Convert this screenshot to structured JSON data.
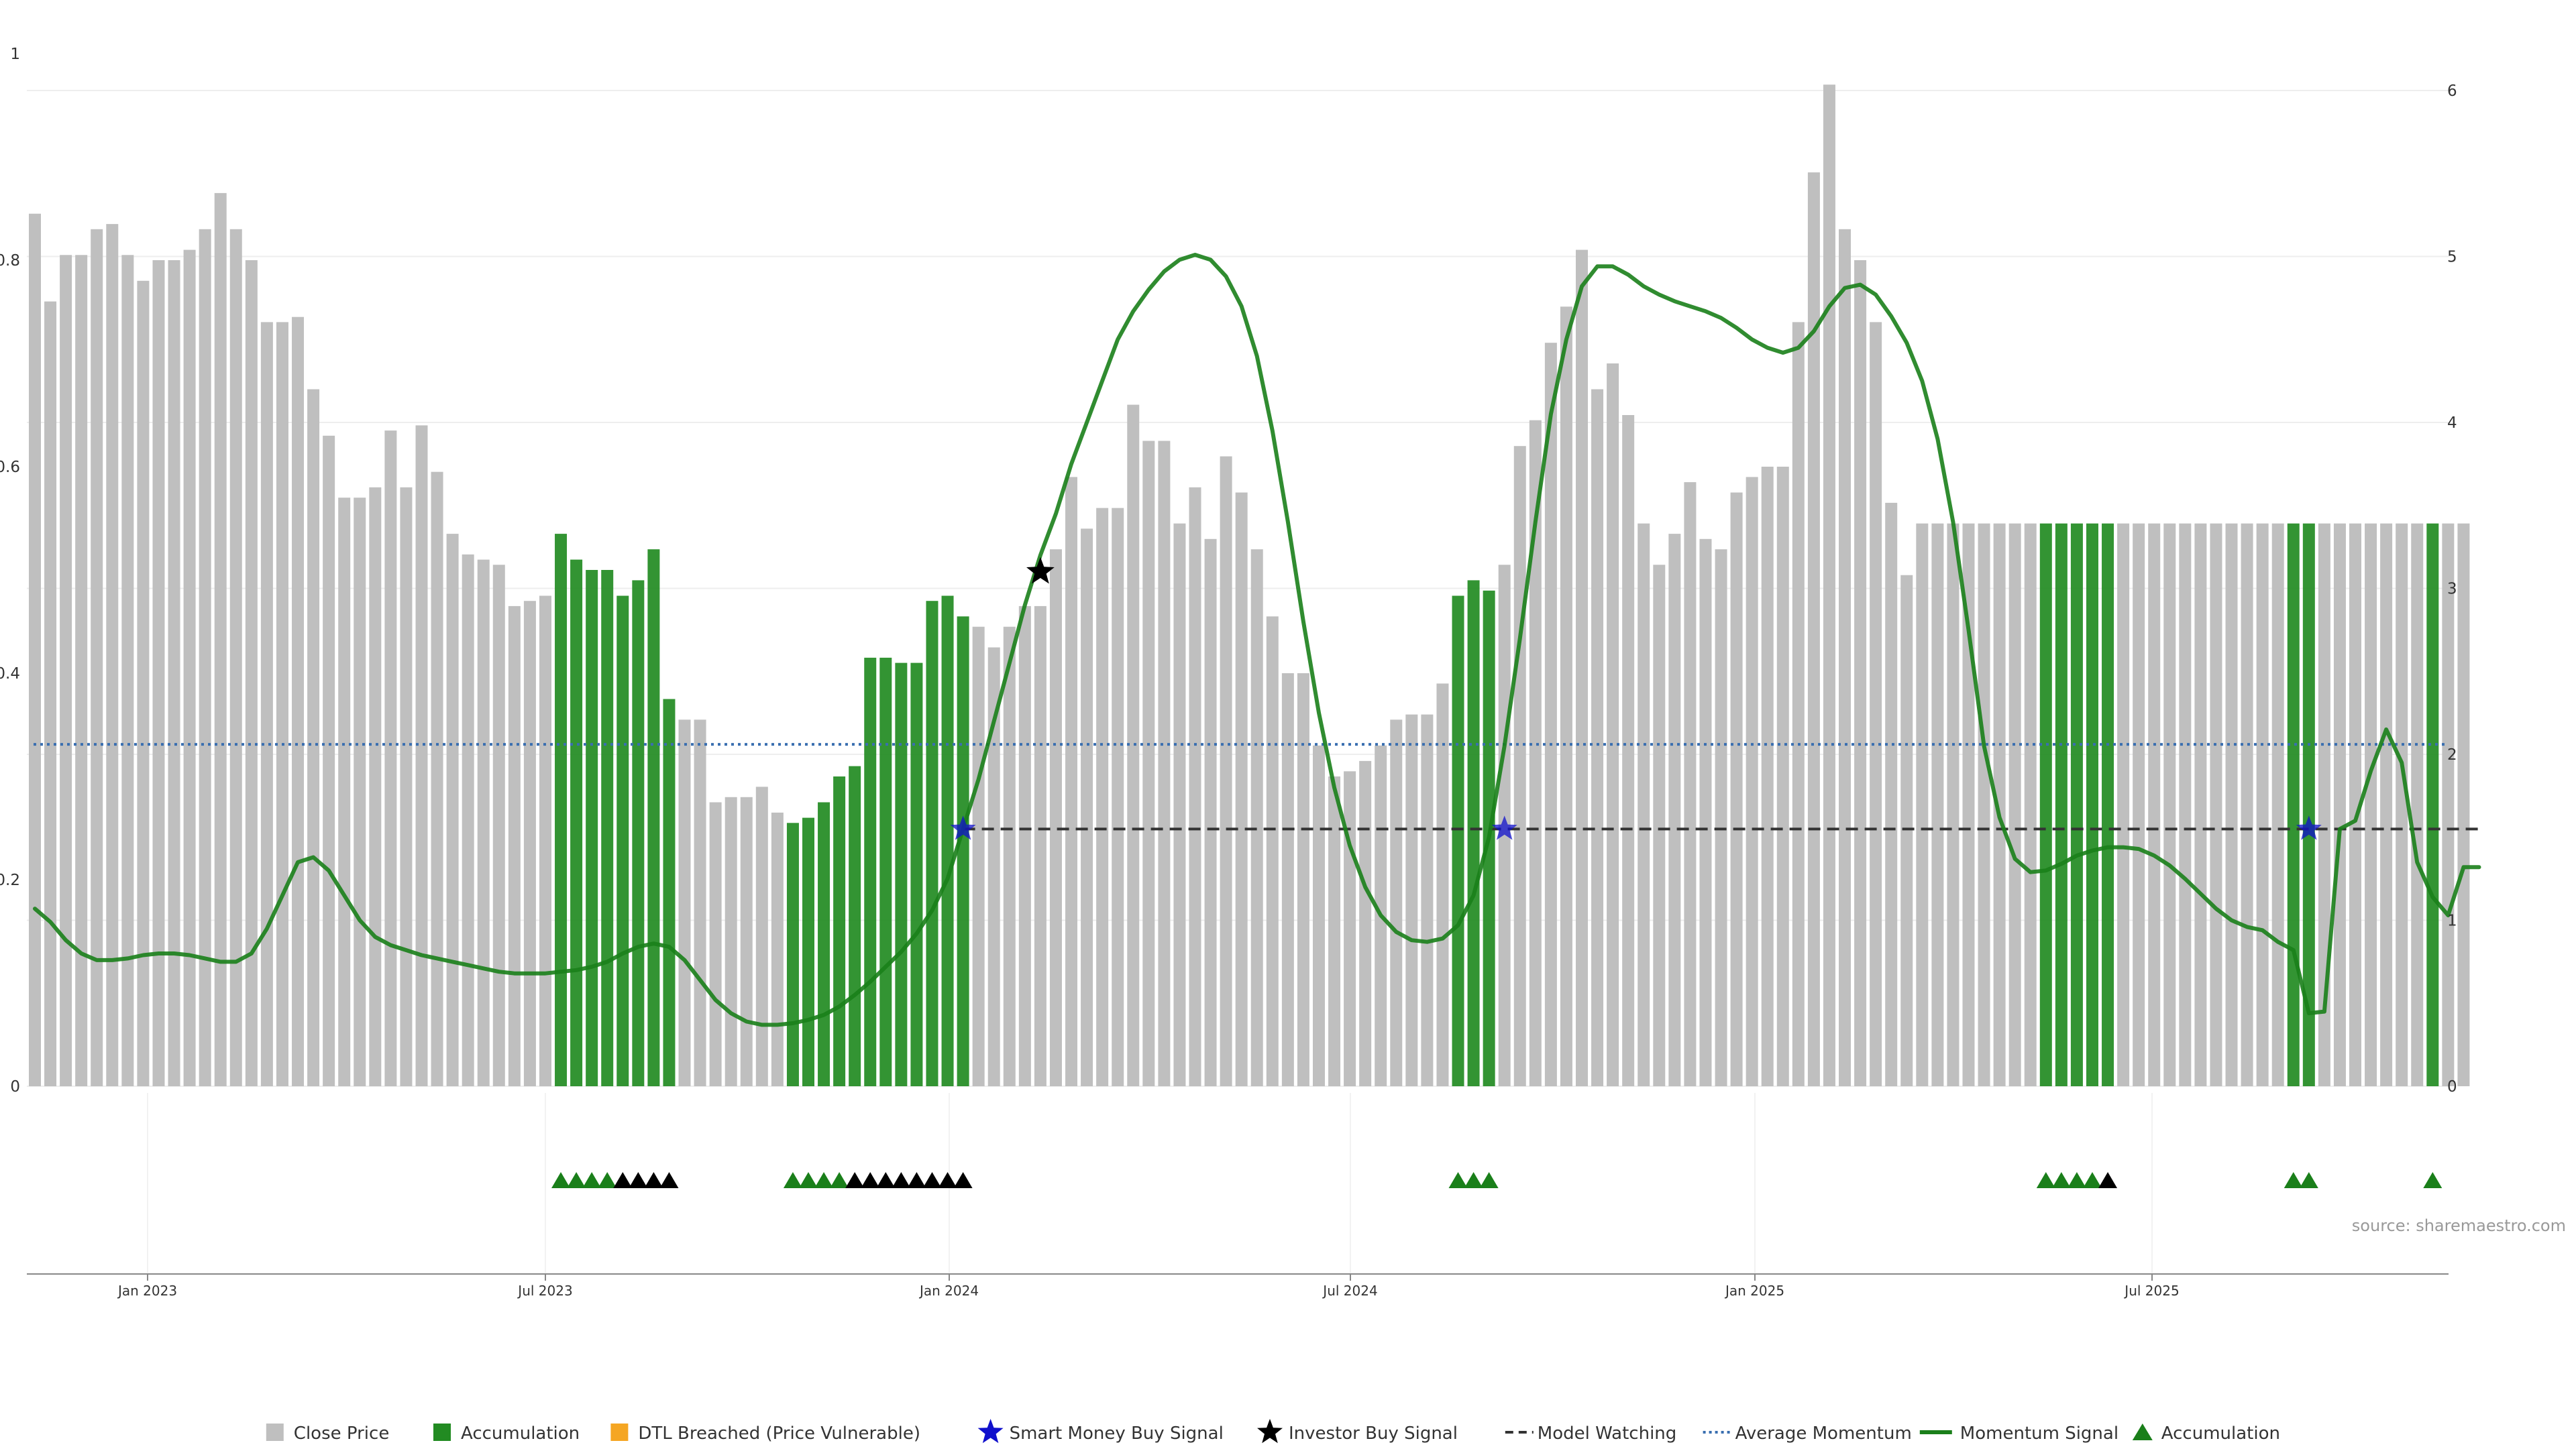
{
  "chart_data": {
    "type": "bar",
    "source_note": "source: sharemaestro.com",
    "x_ticks": [
      "Jan 2023",
      "Jul 2023",
      "Jan 2024",
      "Jul 2024",
      "Jan 2025",
      "Jul 2025"
    ],
    "left_axis": {
      "ylim": [
        0,
        1
      ],
      "ticks": [
        "0",
        "0.2",
        "0.4",
        "0.6",
        "0.8",
        "1"
      ]
    },
    "right_axis": {
      "ylim": [
        0,
        6
      ],
      "ticks": [
        "0",
        "1",
        "2",
        "3",
        "4",
        "5",
        "6"
      ]
    },
    "grid": true,
    "legend_position": "bottom",
    "colors": {
      "close_price": "#bfbfbf",
      "accumulation": "#228b22",
      "dtl_breached": "#f5a623",
      "smart_money": "#1010cc",
      "investor": "#000000",
      "model_watching": "#333333",
      "average_momentum": "#3a6fb0",
      "momentum": "#1a7f1a",
      "grid": "#eeeeee"
    },
    "legend": [
      {
        "label": "Close Price",
        "marker": "square",
        "color": "#bfbfbf"
      },
      {
        "label": "Accumulation",
        "marker": "square",
        "color": "#228b22"
      },
      {
        "label": "DTL Breached (Price Vulnerable)",
        "marker": "square",
        "color": "#f5a623"
      },
      {
        "label": "Smart Money Buy Signal",
        "marker": "star",
        "color": "#1010cc"
      },
      {
        "label": "Investor Buy Signal",
        "marker": "star",
        "color": "#000000"
      },
      {
        "label": "Model Watching",
        "marker": "dash",
        "color": "#333333"
      },
      {
        "label": "Average Momentum",
        "marker": "dot",
        "color": "#3a6fb0"
      },
      {
        "label": "Momentum Signal",
        "marker": "line",
        "color": "#1a7f1a"
      },
      {
        "label": "Accumulation",
        "marker": "triangle",
        "color": "#1a7f1a"
      }
    ],
    "series": [
      {
        "name": "Close Price",
        "type": "bar",
        "axis": "left",
        "x_index_range": [
          0,
          156
        ],
        "values": [
          0.845,
          0.76,
          0.805,
          0.805,
          0.83,
          0.835,
          0.805,
          0.78,
          0.8,
          0.8,
          0.81,
          0.83,
          0.865,
          0.83,
          0.8,
          0.74,
          0.74,
          0.745,
          0.675,
          0.63,
          0.57,
          0.57,
          0.58,
          0.635,
          0.58,
          0.64,
          0.595,
          0.535,
          0.515,
          0.51,
          0.505,
          0.465,
          0.47,
          0.475,
          0.535,
          0.51,
          0.5,
          0.5,
          0.475,
          0.49,
          0.52,
          0.375,
          0.355,
          0.355,
          0.275,
          0.28,
          0.28,
          0.29,
          0.265,
          0.255,
          0.26,
          0.275,
          0.3,
          0.31,
          0.415,
          0.415,
          0.41,
          0.41,
          0.47,
          0.475,
          0.455,
          0.445,
          0.425,
          0.445,
          0.465,
          0.465,
          0.52,
          0.59,
          0.54,
          0.56,
          0.56,
          0.66,
          0.625,
          0.625,
          0.545,
          0.58,
          0.53,
          0.61,
          0.575,
          0.52,
          0.455,
          0.4,
          0.4,
          0.33,
          0.3,
          0.305,
          0.315,
          0.33,
          0.355,
          0.36,
          0.36,
          0.39,
          0.475,
          0.49,
          0.48,
          0.505,
          0.62,
          0.645,
          0.72,
          0.755,
          0.81,
          0.675,
          0.7,
          0.65,
          0.545,
          0.505,
          0.535,
          0.585,
          0.53,
          0.52,
          0.575,
          0.59,
          0.6,
          0.6,
          0.74,
          0.885,
          0.97,
          0.83,
          0.8,
          0.74,
          0.565,
          0.495,
          0.545,
          0.545,
          0.545,
          0.545,
          0.545,
          0.545,
          0.545,
          0.545,
          0.545,
          0.545,
          0.545,
          0.545,
          0.545,
          0.545,
          0.545,
          0.545,
          0.545,
          0.545,
          0.545,
          0.545,
          0.545,
          0.545,
          0.545,
          0.545,
          0.545,
          0.545,
          0.545,
          0.545,
          0.545,
          0.545,
          0.545,
          0.545,
          0.545,
          0.545,
          0.545,
          0.545
        ],
        "accumulation_index_ranges": [
          [
            34,
            41
          ],
          [
            49,
            60
          ],
          [
            92,
            94
          ],
          [
            130,
            134
          ],
          [
            146,
            146
          ],
          [
            147,
            147
          ],
          [
            155,
            155
          ]
        ]
      },
      {
        "name": "Momentum Signal",
        "type": "line",
        "axis": "right",
        "points": [
          [
            0,
            1.07
          ],
          [
            1,
            0.99
          ],
          [
            2,
            0.88
          ],
          [
            3,
            0.8
          ],
          [
            4,
            0.76
          ],
          [
            5,
            0.76
          ],
          [
            6,
            0.77
          ],
          [
            7,
            0.79
          ],
          [
            8,
            0.8
          ],
          [
            9,
            0.8
          ],
          [
            10,
            0.79
          ],
          [
            11,
            0.77
          ],
          [
            12,
            0.75
          ],
          [
            13,
            0.75
          ],
          [
            14,
            0.8
          ],
          [
            15,
            0.95
          ],
          [
            16,
            1.15
          ],
          [
            17,
            1.35
          ],
          [
            18,
            1.38
          ],
          [
            19,
            1.3
          ],
          [
            20,
            1.15
          ],
          [
            21,
            1.0
          ],
          [
            22,
            0.9
          ],
          [
            23,
            0.85
          ],
          [
            24,
            0.82
          ],
          [
            25,
            0.79
          ],
          [
            26,
            0.77
          ],
          [
            27,
            0.75
          ],
          [
            28,
            0.73
          ],
          [
            29,
            0.71
          ],
          [
            30,
            0.69
          ],
          [
            31,
            0.68
          ],
          [
            32,
            0.68
          ],
          [
            33,
            0.68
          ],
          [
            34,
            0.69
          ],
          [
            35,
            0.7
          ],
          [
            36,
            0.72
          ],
          [
            37,
            0.75
          ],
          [
            38,
            0.8
          ],
          [
            39,
            0.84
          ],
          [
            40,
            0.86
          ],
          [
            41,
            0.84
          ],
          [
            42,
            0.76
          ],
          [
            43,
            0.64
          ],
          [
            44,
            0.52
          ],
          [
            45,
            0.44
          ],
          [
            46,
            0.39
          ],
          [
            47,
            0.37
          ],
          [
            48,
            0.37
          ],
          [
            49,
            0.38
          ],
          [
            50,
            0.4
          ],
          [
            51,
            0.43
          ],
          [
            52,
            0.48
          ],
          [
            53,
            0.55
          ],
          [
            54,
            0.63
          ],
          [
            55,
            0.72
          ],
          [
            56,
            0.81
          ],
          [
            57,
            0.92
          ],
          [
            58,
            1.06
          ],
          [
            59,
            1.25
          ],
          [
            60,
            1.55
          ],
          [
            61,
            1.85
          ],
          [
            62,
            2.2
          ],
          [
            63,
            2.55
          ],
          [
            64,
            2.9
          ],
          [
            65,
            3.2
          ],
          [
            66,
            3.45
          ],
          [
            67,
            3.75
          ],
          [
            68,
            4.0
          ],
          [
            69,
            4.25
          ],
          [
            70,
            4.5
          ],
          [
            71,
            4.67
          ],
          [
            72,
            4.8
          ],
          [
            73,
            4.91
          ],
          [
            74,
            4.98
          ],
          [
            75,
            5.01
          ],
          [
            76,
            4.98
          ],
          [
            77,
            4.88
          ],
          [
            78,
            4.7
          ],
          [
            79,
            4.4
          ],
          [
            80,
            3.95
          ],
          [
            81,
            3.4
          ],
          [
            82,
            2.8
          ],
          [
            83,
            2.25
          ],
          [
            84,
            1.8
          ],
          [
            85,
            1.45
          ],
          [
            86,
            1.2
          ],
          [
            87,
            1.03
          ],
          [
            88,
            0.93
          ],
          [
            89,
            0.88
          ],
          [
            90,
            0.87
          ],
          [
            91,
            0.89
          ],
          [
            92,
            0.97
          ],
          [
            93,
            1.15
          ],
          [
            94,
            1.5
          ],
          [
            95,
            2.05
          ],
          [
            96,
            2.7
          ],
          [
            97,
            3.4
          ],
          [
            98,
            4.05
          ],
          [
            99,
            4.5
          ],
          [
            100,
            4.82
          ],
          [
            101,
            4.94
          ],
          [
            102,
            4.94
          ],
          [
            103,
            4.89
          ],
          [
            104,
            4.82
          ],
          [
            105,
            4.77
          ],
          [
            106,
            4.73
          ],
          [
            107,
            4.7
          ],
          [
            108,
            4.67
          ],
          [
            109,
            4.63
          ],
          [
            110,
            4.57
          ],
          [
            111,
            4.5
          ],
          [
            112,
            4.45
          ],
          [
            113,
            4.42
          ],
          [
            114,
            4.45
          ],
          [
            115,
            4.55
          ],
          [
            116,
            4.7
          ],
          [
            117,
            4.81
          ],
          [
            118,
            4.83
          ],
          [
            119,
            4.77
          ],
          [
            120,
            4.64
          ],
          [
            121,
            4.48
          ],
          [
            122,
            4.25
          ],
          [
            123,
            3.9
          ],
          [
            124,
            3.4
          ],
          [
            125,
            2.75
          ],
          [
            126,
            2.05
          ],
          [
            127,
            1.62
          ],
          [
            128,
            1.37
          ],
          [
            129,
            1.29
          ],
          [
            130,
            1.3
          ],
          [
            131,
            1.34
          ],
          [
            132,
            1.39
          ],
          [
            133,
            1.42
          ],
          [
            134,
            1.44
          ],
          [
            135,
            1.44
          ],
          [
            136,
            1.43
          ],
          [
            137,
            1.39
          ],
          [
            138,
            1.33
          ],
          [
            139,
            1.25
          ],
          [
            140,
            1.16
          ],
          [
            141,
            1.07
          ],
          [
            142,
            1.0
          ],
          [
            143,
            0.96
          ],
          [
            144,
            0.94
          ],
          [
            145,
            0.87
          ],
          [
            146,
            0.82
          ],
          [
            147,
            0.44
          ],
          [
            148,
            0.45
          ],
          [
            149,
            1.55
          ],
          [
            150,
            1.6
          ],
          [
            151,
            1.9
          ],
          [
            152,
            2.15
          ],
          [
            153,
            1.95
          ],
          [
            154,
            1.35
          ],
          [
            155,
            1.14
          ],
          [
            156,
            1.03
          ],
          [
            157,
            1.32
          ],
          [
            158,
            1.32
          ]
        ]
      },
      {
        "name": "Average Momentum",
        "type": "hline",
        "axis": "right",
        "value": 2.06
      },
      {
        "name": "Model Watching",
        "type": "hline",
        "axis": "right",
        "value": 1.55,
        "x_index_range": [
          60,
          158
        ]
      },
      {
        "name": "Smart Money Buy Signal",
        "type": "scatter",
        "axis": "right",
        "points": [
          [
            60,
            1.55
          ],
          [
            95,
            1.55
          ],
          [
            147,
            1.55
          ]
        ]
      },
      {
        "name": "Investor Buy Signal",
        "type": "scatter",
        "axis": "right",
        "points": [
          [
            65,
            3.1
          ]
        ]
      }
    ],
    "bottom_markers": {
      "green_indices": [
        34,
        35,
        36,
        37,
        49,
        50,
        51,
        52,
        92,
        93,
        94,
        130,
        131,
        132,
        133,
        146,
        147,
        155
      ],
      "black_indices": [
        38,
        39,
        40,
        41,
        53,
        54,
        55,
        56,
        57,
        58,
        59,
        60,
        134
      ]
    }
  }
}
